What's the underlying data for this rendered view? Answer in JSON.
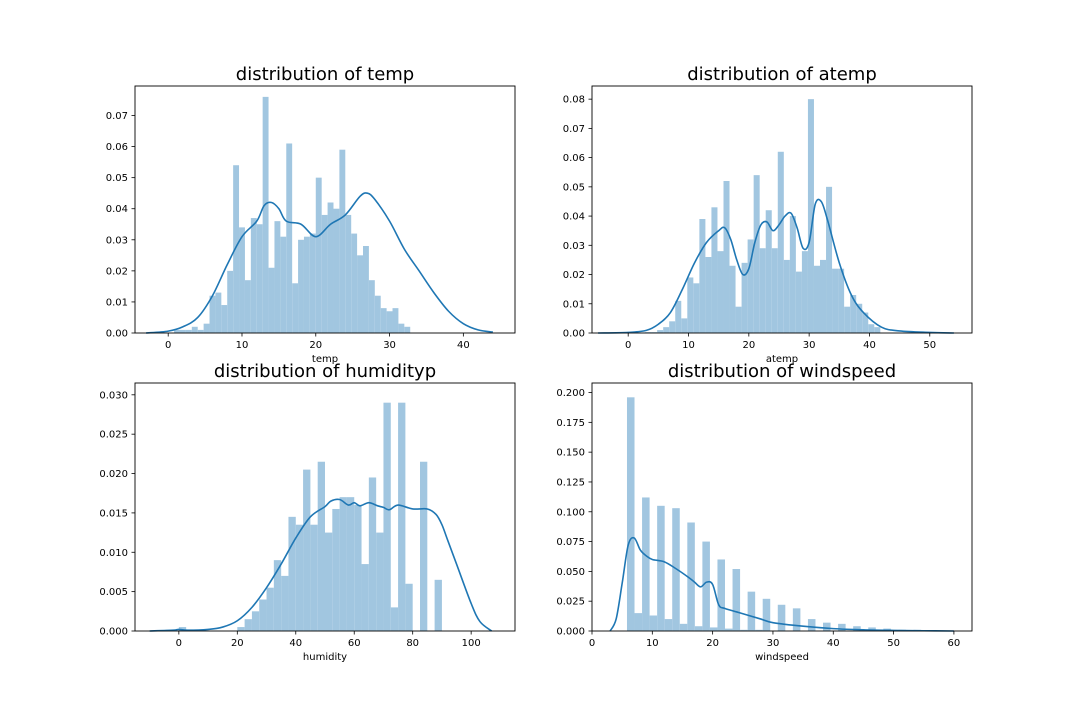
{
  "colors": {
    "bar": "#a1c6e0",
    "kde": "#1f77b4",
    "axis": "#000000",
    "background": "#ffffff"
  },
  "chart_data": [
    {
      "type": "bar",
      "title": "distribution of temp",
      "xlabel": "temp",
      "ylabel": "",
      "xlim": [
        -4.5,
        47.0
      ],
      "ylim": [
        0,
        0.0795
      ],
      "xticks": [
        0,
        10,
        20,
        30,
        40
      ],
      "yticks": [
        0.0,
        0.01,
        0.02,
        0.03,
        0.04,
        0.05,
        0.06,
        0.07
      ],
      "ytick_labels": [
        "0.00",
        "0.01",
        "0.02",
        "0.03",
        "0.04",
        "0.05",
        "0.06",
        "0.07"
      ],
      "bins": {
        "start": 0.8,
        "width": 0.8
      },
      "values": [
        0.001,
        0.001,
        0.001,
        0.002,
        0.001,
        0.003,
        0.012,
        0.013,
        0.009,
        0.02,
        0.054,
        0.034,
        0.017,
        0.037,
        0.035,
        0.076,
        0.021,
        0.036,
        0.031,
        0.061,
        0.016,
        0.03,
        0.031,
        0.032,
        0.05,
        0.038,
        0.042,
        0.04,
        0.059,
        0.038,
        0.032,
        0.025,
        0.028,
        0.017,
        0.012,
        0.008,
        0.007,
        0.008,
        0.003,
        0.002
      ],
      "kde": {
        "x": [
          -3,
          0,
          2,
          4,
          6,
          8,
          10,
          12,
          13,
          14,
          15,
          16,
          18,
          20,
          22,
          24,
          26,
          27,
          28,
          30,
          32,
          34,
          36,
          38,
          40,
          42,
          44
        ],
        "y": [
          0.0,
          0.0006,
          0.002,
          0.005,
          0.012,
          0.022,
          0.031,
          0.036,
          0.041,
          0.042,
          0.04,
          0.036,
          0.035,
          0.031,
          0.035,
          0.038,
          0.044,
          0.045,
          0.043,
          0.036,
          0.027,
          0.02,
          0.013,
          0.007,
          0.003,
          0.001,
          0.0003
        ]
      }
    },
    {
      "type": "bar",
      "title": "distribution of atemp",
      "xlabel": "atemp",
      "ylabel": "",
      "xlim": [
        -6,
        57
      ],
      "ylim": [
        0,
        0.0845
      ],
      "xticks": [
        0,
        10,
        20,
        30,
        40,
        50
      ],
      "yticks": [
        0.0,
        0.01,
        0.02,
        0.03,
        0.04,
        0.05,
        0.06,
        0.07,
        0.08
      ],
      "ytick_labels": [
        "0.00",
        "0.01",
        "0.02",
        "0.03",
        "0.04",
        "0.05",
        "0.06",
        "0.07",
        "0.08"
      ],
      "bins": {
        "start": 0.8,
        "width": 1.0
      },
      "values": [
        0.0002,
        0.0002,
        0.0003,
        0.0003,
        0.001,
        0.002,
        0.004,
        0.011,
        0.005,
        0.019,
        0.017,
        0.039,
        0.026,
        0.043,
        0.028,
        0.052,
        0.023,
        0.009,
        0.024,
        0.032,
        0.054,
        0.029,
        0.042,
        0.029,
        0.062,
        0.025,
        0.04,
        0.021,
        0.028,
        0.08,
        0.023,
        0.025,
        0.05,
        0.022,
        0.022,
        0.009,
        0.013,
        0.01,
        0.007,
        0.003,
        0.002
      ],
      "kde": {
        "x": [
          -5,
          0,
          3,
          5,
          7,
          9,
          11,
          13,
          15,
          16,
          17,
          18,
          19,
          20,
          21,
          22,
          23,
          24,
          25,
          26,
          27,
          28,
          29,
          30,
          31,
          32,
          33,
          35,
          37,
          39,
          42,
          45,
          50,
          54
        ],
        "y": [
          0.0,
          0.0002,
          0.0009,
          0.003,
          0.007,
          0.015,
          0.024,
          0.031,
          0.035,
          0.036,
          0.032,
          0.025,
          0.02,
          0.022,
          0.031,
          0.037,
          0.038,
          0.035,
          0.037,
          0.04,
          0.041,
          0.036,
          0.029,
          0.031,
          0.044,
          0.045,
          0.039,
          0.024,
          0.013,
          0.007,
          0.002,
          0.0007,
          0.0002,
          0.0
        ]
      }
    },
    {
      "type": "bar",
      "title": "distribution of humidityp",
      "xlabel": "humidity",
      "ylabel": "",
      "xlim": [
        -15,
        115
      ],
      "ylim": [
        0,
        0.0315
      ],
      "xticks": [
        0,
        20,
        40,
        60,
        80,
        100
      ],
      "yticks": [
        0.0,
        0.005,
        0.01,
        0.015,
        0.02,
        0.025,
        0.03
      ],
      "ytick_labels": [
        "0.000",
        "0.005",
        "0.010",
        "0.015",
        "0.020",
        "0.025",
        "0.030"
      ],
      "bins": {
        "start": 0,
        "width": 2.5
      },
      "values": [
        0.0005,
        0.0,
        0.0,
        0.0,
        0.0,
        0.0,
        0.0,
        0.0,
        0.0005,
        0.0015,
        0.0025,
        0.004,
        0.0055,
        0.009,
        0.007,
        0.0145,
        0.0135,
        0.0205,
        0.0135,
        0.0215,
        0.0125,
        0.0155,
        0.017,
        0.017,
        0.016,
        0.0085,
        0.0195,
        0.0125,
        0.029,
        0.003,
        0.029,
        0.006,
        0.0,
        0.0215,
        0.0,
        0.0065
      ],
      "kde": {
        "x": [
          -10,
          -2,
          0,
          3,
          10,
          15,
          20,
          25,
          30,
          35,
          40,
          45,
          50,
          52,
          55,
          58,
          60,
          62,
          65,
          68,
          70,
          72,
          75,
          80,
          85,
          88,
          90,
          92,
          95,
          100,
          103,
          107
        ],
        "y": [
          0.0,
          0.0001,
          0.0002,
          0.0001,
          0.0002,
          0.0005,
          0.0013,
          0.003,
          0.0055,
          0.0085,
          0.0118,
          0.0145,
          0.0158,
          0.0165,
          0.0167,
          0.016,
          0.0163,
          0.0159,
          0.0163,
          0.0159,
          0.0157,
          0.0154,
          0.016,
          0.0155,
          0.0155,
          0.0148,
          0.0135,
          0.0115,
          0.0085,
          0.0035,
          0.0012,
          0.0
        ]
      }
    },
    {
      "type": "bar",
      "title": "distribution of windspeed",
      "xlabel": "windspeed",
      "ylabel": "",
      "xlim": [
        0,
        63
      ],
      "ylim": [
        0,
        0.208
      ],
      "xticks": [
        0,
        10,
        20,
        30,
        40,
        50,
        60
      ],
      "yticks": [
        0.0,
        0.025,
        0.05,
        0.075,
        0.1,
        0.125,
        0.15,
        0.175,
        0.2
      ],
      "ytick_labels": [
        "0.000",
        "0.025",
        "0.050",
        "0.075",
        "0.100",
        "0.125",
        "0.150",
        "0.175",
        "0.200"
      ],
      "bins": {
        "start": 5.8,
        "width": 1.25
      },
      "values": [
        0.196,
        0.015,
        0.112,
        0.013,
        0.105,
        0.01,
        0.103,
        0.006,
        0.091,
        0.004,
        0.075,
        0.003,
        0.06,
        0.002,
        0.052,
        0.001,
        0.033,
        0.001,
        0.027,
        0.0,
        0.022,
        0.0,
        0.019,
        0.0,
        0.01,
        0.0,
        0.007,
        0.0,
        0.006,
        0.0,
        0.004,
        0.0,
        0.003,
        0.0,
        0.002,
        0.0,
        0.001,
        0.0,
        0.001
      ],
      "kde": {
        "x": [
          3,
          4,
          5,
          6,
          7,
          8,
          9,
          10,
          12,
          14,
          16,
          17,
          18,
          19,
          20,
          21,
          22,
          24,
          26,
          28,
          30,
          35,
          40,
          45,
          50,
          55,
          60
        ],
        "y": [
          0.0,
          0.01,
          0.04,
          0.072,
          0.078,
          0.068,
          0.063,
          0.06,
          0.058,
          0.052,
          0.045,
          0.041,
          0.037,
          0.041,
          0.039,
          0.022,
          0.019,
          0.016,
          0.013,
          0.01,
          0.007,
          0.004,
          0.002,
          0.001,
          0.0005,
          0.0002,
          0.0
        ]
      }
    }
  ]
}
